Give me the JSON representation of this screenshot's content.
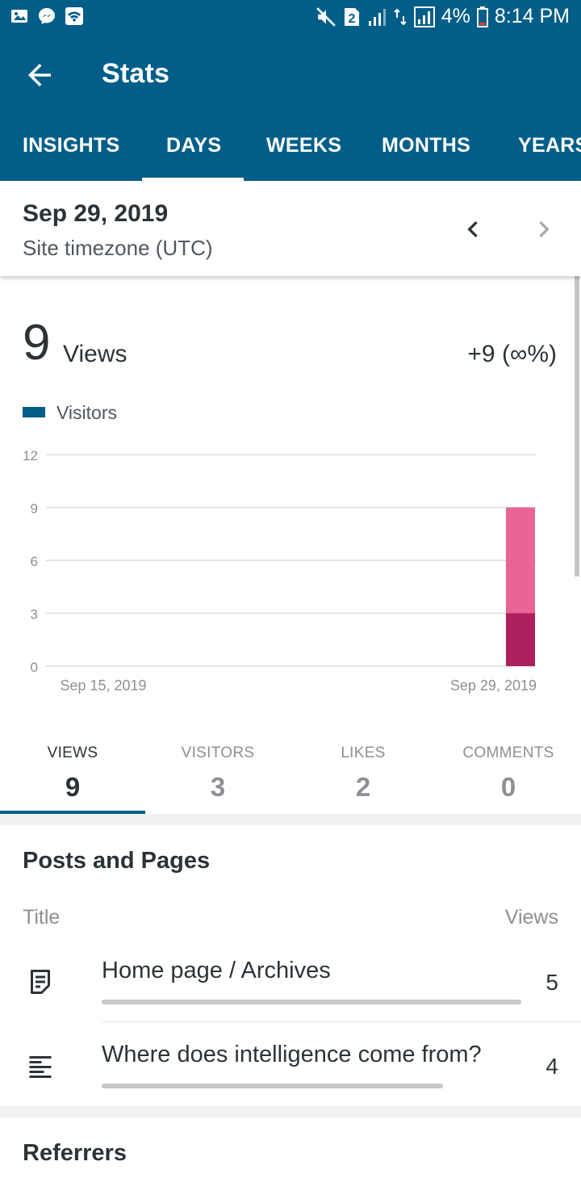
{
  "status_bar": {
    "battery": "4%",
    "time": "8:14 PM",
    "sim_badge": "2",
    "icons_left": [
      "gallery-icon",
      "messenger-icon",
      "wifi-icon"
    ],
    "icons_right": [
      "mute-icon",
      "sim-icon",
      "signal-icon",
      "data-icon",
      "signal-icon",
      "battery-icon"
    ]
  },
  "app_bar": {
    "title": "Stats",
    "back_icon": "arrow-left-icon"
  },
  "tabs": [
    {
      "label": "INSIGHTS",
      "active": false
    },
    {
      "label": "DAYS",
      "active": true
    },
    {
      "label": "WEEKS",
      "active": false
    },
    {
      "label": "MONTHS",
      "active": false
    },
    {
      "label": "YEARS",
      "active": false
    }
  ],
  "date_header": {
    "date": "Sep 29, 2019",
    "timezone": "Site timezone (UTC)",
    "prev_icon": "chevron-left-icon",
    "next_icon": "chevron-right-icon"
  },
  "overview": {
    "count": "9",
    "label": "Views",
    "change": "+9 (∞%)",
    "legend": "Visitors"
  },
  "chart_data": {
    "type": "bar",
    "x": [
      "Sep 15, 2019",
      "Sep 29, 2019"
    ],
    "x_ticks": [
      "Sep 15, 2019",
      "Sep 29, 2019"
    ],
    "y_ticks": [
      "0",
      "3",
      "6",
      "9",
      "12"
    ],
    "ylim": [
      0,
      12
    ],
    "series": [
      {
        "name": "Visitors",
        "values": [
          0,
          3
        ]
      }
    ],
    "totals": [
      0,
      9
    ],
    "colors": {
      "visitors": "#ae1f5d",
      "views": "#e86596"
    },
    "grid": true,
    "legend": "top-left"
  },
  "stats_tabs": [
    {
      "label": "VIEWS",
      "value": "9",
      "active": true
    },
    {
      "label": "VISITORS",
      "value": "3",
      "active": false
    },
    {
      "label": "LIKES",
      "value": "2",
      "active": false
    },
    {
      "label": "COMMENTS",
      "value": "0",
      "active": false
    }
  ],
  "posts_pages": {
    "title": "Posts and Pages",
    "col_title": "Title",
    "col_views": "Views",
    "rows": [
      {
        "title": "Home page / Archives",
        "views": "5",
        "icon": "page-icon",
        "fraction": 1.0
      },
      {
        "title": "Where does intelligence come from?",
        "views": "4",
        "icon": "post-icon",
        "fraction": 0.8
      }
    ]
  },
  "referrers": {
    "title": "Referrers"
  },
  "colors": {
    "primary": "#005e88",
    "accent_dark": "#ae1f5d",
    "accent_light": "#e86596"
  }
}
